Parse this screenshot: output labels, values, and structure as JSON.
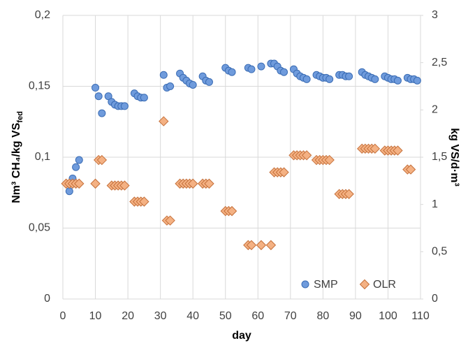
{
  "chart_data": {
    "type": "scatter",
    "x_label": "day",
    "y_label": [
      "Nm³ CH₄/kg VS",
      "fed"
    ],
    "y2_label": "kg VS/d·m³",
    "xlim": [
      0,
      110
    ],
    "xticks": [
      0,
      10,
      20,
      30,
      40,
      50,
      60,
      70,
      80,
      90,
      100,
      110
    ],
    "ylim": [
      0,
      0.2
    ],
    "yticks": [
      0,
      {
        "value": 0.05,
        "label": "0,05"
      },
      {
        "value": 0.1,
        "label": "0,1"
      },
      {
        "value": 0.15,
        "label": "0,15"
      },
      {
        "value": 0.2,
        "label": "0,2"
      }
    ],
    "y2lim": [
      0,
      3
    ],
    "y2ticks": [
      0,
      {
        "value": 0.5,
        "label": "0,5"
      },
      1,
      {
        "value": 1.5,
        "label": "1,5"
      },
      2,
      {
        "value": 2.5,
        "label": "2,5"
      },
      3
    ],
    "grid": true,
    "legend": "lower right",
    "series": [
      {
        "name": "SMP",
        "color": "#6f9bdc",
        "marker": "circle",
        "x": [
          2,
          3,
          4,
          5,
          10,
          11,
          12,
          14,
          15,
          16,
          17,
          18,
          19,
          22,
          23,
          24,
          25,
          31,
          32,
          33,
          36,
          37,
          38,
          39,
          40,
          43,
          44,
          45,
          50,
          51,
          52,
          57,
          58,
          61,
          64,
          65,
          66,
          67,
          68,
          71,
          72,
          73,
          74,
          75,
          78,
          79,
          80,
          81,
          82,
          85,
          86,
          87,
          88,
          92,
          93,
          94,
          95,
          96,
          99,
          100,
          101,
          102,
          103,
          106,
          107,
          108,
          109
        ],
        "values": [
          0.076,
          0.085,
          0.093,
          0.098,
          0.149,
          0.143,
          0.131,
          0.143,
          0.139,
          0.137,
          0.136,
          0.136,
          0.136,
          0.145,
          0.143,
          0.142,
          0.142,
          0.158,
          0.149,
          0.15,
          0.159,
          0.156,
          0.154,
          0.152,
          0.151,
          0.157,
          0.154,
          0.153,
          0.163,
          0.161,
          0.16,
          0.163,
          0.162,
          0.164,
          0.166,
          0.166,
          0.164,
          0.161,
          0.16,
          0.162,
          0.159,
          0.157,
          0.156,
          0.155,
          0.158,
          0.157,
          0.156,
          0.156,
          0.155,
          0.158,
          0.158,
          0.157,
          0.157,
          0.16,
          0.158,
          0.157,
          0.156,
          0.155,
          0.157,
          0.156,
          0.155,
          0.155,
          0.154,
          0.156,
          0.155,
          0.155,
          0.154
        ]
      },
      {
        "name": "OLR",
        "color": "#f4b183",
        "marker": "diamond",
        "axis": "y2",
        "x": [
          1,
          2,
          3,
          4,
          5,
          10,
          11,
          12,
          15,
          16,
          17,
          18,
          19,
          22,
          23,
          24,
          25,
          31,
          32,
          33,
          36,
          37,
          38,
          39,
          40,
          43,
          44,
          45,
          50,
          51,
          52,
          57,
          58,
          61,
          64,
          65,
          66,
          67,
          68,
          71,
          72,
          73,
          74,
          75,
          78,
          79,
          80,
          81,
          82,
          85,
          86,
          87,
          88,
          92,
          93,
          94,
          95,
          96,
          99,
          100,
          101,
          102,
          103,
          106,
          107
        ],
        "values": [
          1.22,
          1.22,
          1.22,
          1.22,
          1.22,
          1.22,
          1.47,
          1.47,
          1.2,
          1.2,
          1.2,
          1.2,
          1.2,
          1.03,
          1.03,
          1.03,
          1.03,
          1.88,
          0.83,
          0.83,
          1.22,
          1.22,
          1.22,
          1.22,
          1.22,
          1.22,
          1.22,
          1.22,
          0.93,
          0.93,
          0.93,
          0.57,
          0.57,
          0.57,
          0.57,
          1.34,
          1.34,
          1.34,
          1.34,
          1.52,
          1.52,
          1.52,
          1.52,
          1.52,
          1.47,
          1.47,
          1.47,
          1.47,
          1.47,
          1.11,
          1.11,
          1.11,
          1.11,
          1.59,
          1.59,
          1.59,
          1.59,
          1.59,
          1.57,
          1.57,
          1.57,
          1.57,
          1.57,
          1.37,
          1.37
        ]
      }
    ]
  }
}
